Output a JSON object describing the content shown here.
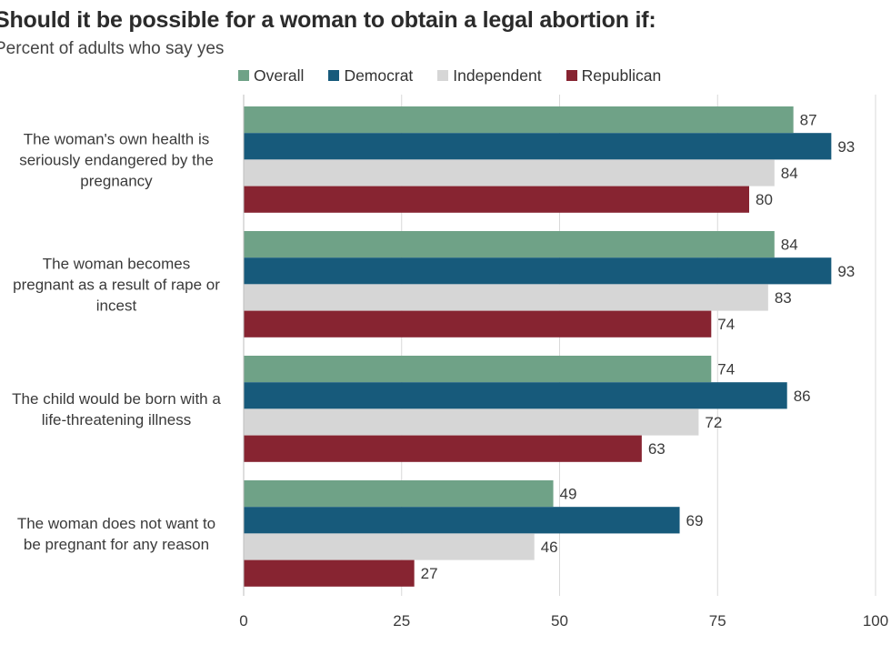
{
  "chart_data": {
    "type": "bar",
    "orientation": "horizontal",
    "title": "Should it be possible for a woman to obtain a legal abortion if:",
    "subtitle": "Percent of adults who say yes",
    "categories": [
      [
        "The woman's own health is",
        "seriously endangered by the",
        "pregnancy"
      ],
      [
        "The woman becomes",
        "pregnant as a result of rape or",
        "incest"
      ],
      [
        "The child would be born with a",
        "life-threatening illness"
      ],
      [
        "The woman does not want to",
        "be pregnant for any reason"
      ]
    ],
    "series": [
      {
        "name": "Overall",
        "color": "#6fa287",
        "values": [
          87,
          84,
          74,
          49
        ]
      },
      {
        "name": "Democrat",
        "color": "#175a7b",
        "values": [
          93,
          93,
          86,
          69
        ]
      },
      {
        "name": "Independent",
        "color": "#d6d6d6",
        "values": [
          84,
          83,
          72,
          46
        ]
      },
      {
        "name": "Republican",
        "color": "#872431",
        "values": [
          80,
          74,
          63,
          27
        ]
      }
    ],
    "xlim": [
      0,
      100
    ],
    "xticks": [
      "0",
      "25",
      "50",
      "75",
      "100"
    ],
    "grid": true,
    "legend_position": "top"
  }
}
